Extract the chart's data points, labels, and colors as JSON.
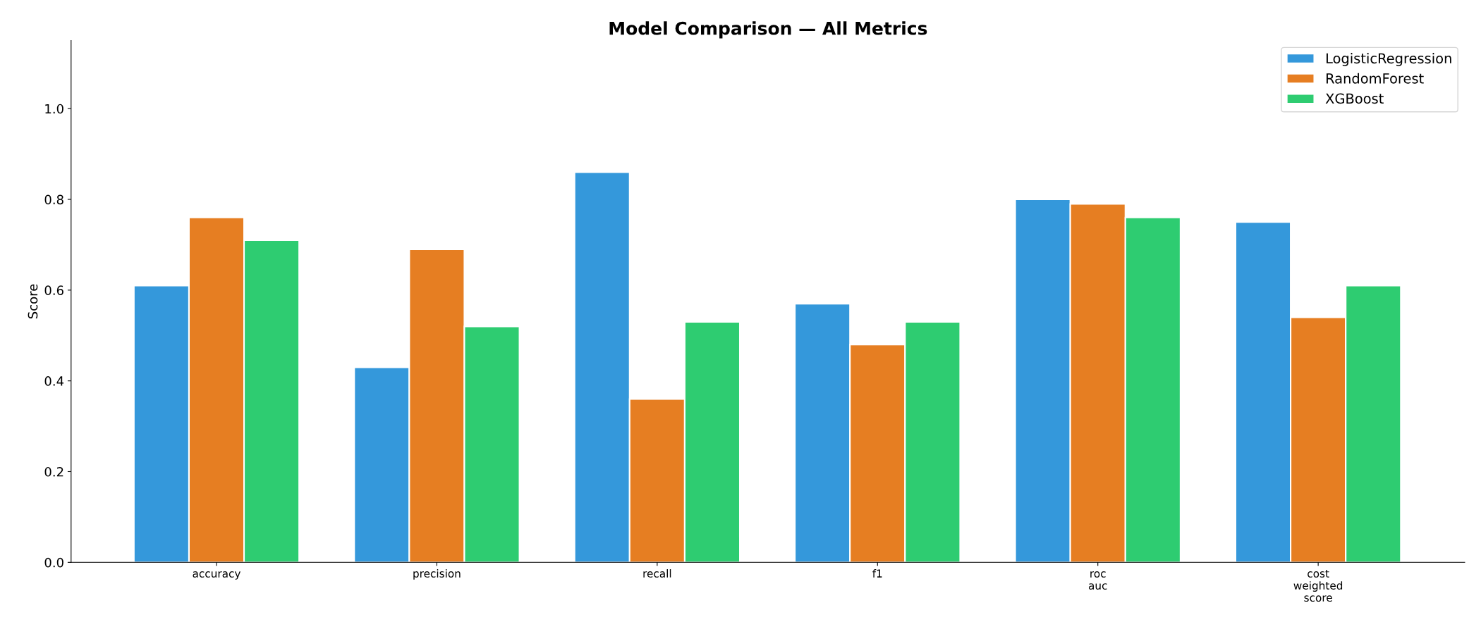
{
  "chart_data": {
    "type": "bar",
    "title": "Model Comparison — All Metrics",
    "ylabel": "Score",
    "categories": [
      "accuracy",
      "precision",
      "recall",
      "f1",
      "roc\nauc",
      "cost\nweighted\nscore"
    ],
    "series": [
      {
        "name": "LogisticRegression",
        "color": "#3498db",
        "values": [
          0.61,
          0.43,
          0.86,
          0.57,
          0.8,
          0.75
        ]
      },
      {
        "name": "RandomForest",
        "color": "#e67e22",
        "values": [
          0.76,
          0.69,
          0.36,
          0.48,
          0.79,
          0.54
        ]
      },
      {
        "name": "XGBoost",
        "color": "#2ecc71",
        "values": [
          0.71,
          0.52,
          0.53,
          0.53,
          0.76,
          0.61
        ]
      }
    ],
    "ylim": [
      0,
      1.15
    ],
    "yticks": [
      {
        "value": 0,
        "label": "0.0"
      },
      0.2,
      0.4,
      0.6,
      0.8,
      {
        "value": 1,
        "label": "1.0"
      }
    ],
    "grid": false,
    "legend": "top right"
  }
}
